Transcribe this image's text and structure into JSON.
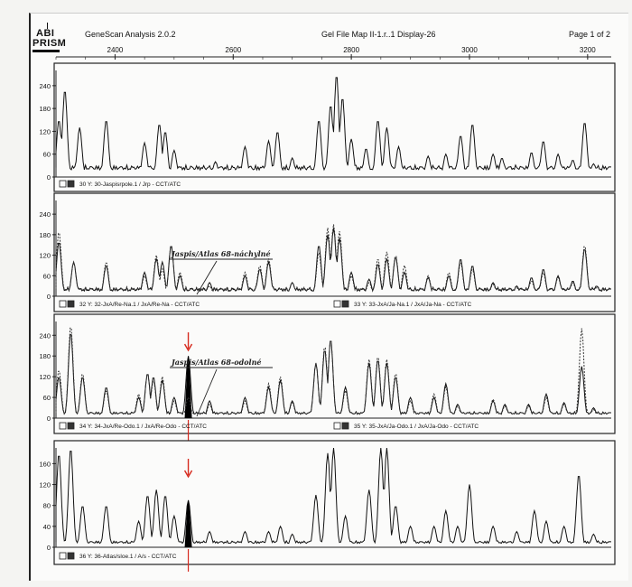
{
  "header": {
    "logo_top": "ABI",
    "logo_bottom": "PRISM",
    "app_title": "GeneScan Analysis 2.0.2",
    "file_title": "Gel File Map II-1.r..1 Display-26",
    "page_label": "Page 1 of 2"
  },
  "colors": {
    "trace": "#111111",
    "dashed": "#333333",
    "marker": "#d62a1e",
    "frame": "#222222"
  },
  "chart_data": [
    {
      "type": "line",
      "xlim": [
        2300,
        3240
      ],
      "x_ticks": [
        "2400",
        "2600",
        "2800",
        "3000",
        "3200"
      ],
      "ylim": [
        0,
        280
      ],
      "y_ticks": [
        "0",
        "60",
        "120",
        "180",
        "240"
      ],
      "lanes": [
        {
          "text": "30 Y: 30-Jaspisrpole.1 / Jrp - CCT/ATC",
          "side": "left"
        }
      ],
      "series": [
        {
          "style": "solid",
          "peaks": [
            [
              2305,
              150
            ],
            [
              2315,
              230
            ],
            [
              2340,
              130
            ],
            [
              2385,
              150
            ],
            [
              2450,
              90
            ],
            [
              2475,
              140
            ],
            [
              2485,
              120
            ],
            [
              2500,
              70
            ],
            [
              2570,
              40
            ],
            [
              2620,
              80
            ],
            [
              2660,
              95
            ],
            [
              2675,
              120
            ],
            [
              2700,
              50
            ],
            [
              2745,
              150
            ],
            [
              2765,
              190
            ],
            [
              2775,
              270
            ],
            [
              2785,
              210
            ],
            [
              2800,
              100
            ],
            [
              2825,
              75
            ],
            [
              2845,
              150
            ],
            [
              2860,
              130
            ],
            [
              2880,
              80
            ],
            [
              2930,
              55
            ],
            [
              2960,
              60
            ],
            [
              2985,
              110
            ],
            [
              3005,
              140
            ],
            [
              3040,
              60
            ],
            [
              3055,
              50
            ],
            [
              3080,
              25
            ],
            [
              3105,
              65
            ],
            [
              3125,
              95
            ],
            [
              3150,
              60
            ],
            [
              3175,
              45
            ],
            [
              3195,
              145
            ],
            [
              3210,
              35
            ]
          ],
          "baseline": 25
        }
      ]
    },
    {
      "type": "line",
      "xlim": [
        2300,
        3240
      ],
      "ylim": [
        0,
        280
      ],
      "y_ticks": [
        "0",
        "60",
        "120",
        "180",
        "240"
      ],
      "lanes": [
        {
          "text": "32 Y: 32-JxA/Re-Na.1 / JxA/Re-Na - CCT/ATC",
          "side": "left"
        },
        {
          "text": "33 Y: 33-JxA/Ja-Na.1 / JxA/Ja-Na - CCT/ATC",
          "side": "right"
        }
      ],
      "annotation": "Jaspis/Atlas 68-náchylné",
      "series": [
        {
          "style": "solid",
          "peaks": [
            [
              2305,
              160
            ],
            [
              2330,
              100
            ],
            [
              2385,
              90
            ],
            [
              2450,
              70
            ],
            [
              2470,
              110
            ],
            [
              2480,
              100
            ],
            [
              2495,
              150
            ],
            [
              2510,
              60
            ],
            [
              2560,
              40
            ],
            [
              2620,
              60
            ],
            [
              2645,
              80
            ],
            [
              2660,
              100
            ],
            [
              2700,
              40
            ],
            [
              2745,
              150
            ],
            [
              2760,
              180
            ],
            [
              2770,
              200
            ],
            [
              2780,
              170
            ],
            [
              2800,
              70
            ],
            [
              2830,
              50
            ],
            [
              2845,
              95
            ],
            [
              2860,
              110
            ],
            [
              2875,
              115
            ],
            [
              2890,
              70
            ],
            [
              2930,
              55
            ],
            [
              2965,
              60
            ],
            [
              2985,
              110
            ],
            [
              3005,
              90
            ],
            [
              3040,
              40
            ],
            [
              3080,
              30
            ],
            [
              3105,
              55
            ],
            [
              3125,
              80
            ],
            [
              3150,
              60
            ],
            [
              3175,
              45
            ],
            [
              3195,
              140
            ],
            [
              3215,
              30
            ]
          ],
          "baseline": 20
        },
        {
          "style": "dashed",
          "peaks": [
            [
              2305,
              190
            ],
            [
              2330,
              100
            ],
            [
              2385,
              100
            ],
            [
              2450,
              60
            ],
            [
              2470,
              120
            ],
            [
              2480,
              80
            ],
            [
              2495,
              150
            ],
            [
              2510,
              70
            ],
            [
              2560,
              30
            ],
            [
              2620,
              70
            ],
            [
              2645,
              90
            ],
            [
              2660,
              110
            ],
            [
              2700,
              40
            ],
            [
              2745,
              130
            ],
            [
              2760,
              200
            ],
            [
              2770,
              210
            ],
            [
              2780,
              190
            ],
            [
              2800,
              60
            ],
            [
              2830,
              40
            ],
            [
              2845,
              110
            ],
            [
              2860,
              130
            ],
            [
              2875,
              120
            ],
            [
              2890,
              90
            ],
            [
              2930,
              60
            ],
            [
              2965,
              70
            ],
            [
              2985,
              100
            ],
            [
              3005,
              80
            ],
            [
              3040,
              35
            ],
            [
              3080,
              25
            ],
            [
              3105,
              45
            ],
            [
              3125,
              70
            ],
            [
              3150,
              55
            ],
            [
              3175,
              40
            ],
            [
              3195,
              150
            ],
            [
              3215,
              25
            ]
          ],
          "baseline": 22
        }
      ]
    },
    {
      "type": "line",
      "xlim": [
        2300,
        3240
      ],
      "ylim": [
        0,
        280
      ],
      "y_ticks": [
        "0",
        "60",
        "120",
        "180",
        "240"
      ],
      "lanes": [
        {
          "text": "34 Y: 34-JxA/Re-Odo.1 / JxA/Re-Odo - CCT/ATC",
          "side": "left"
        },
        {
          "text": "35 Y: 35-JxA/Ja-Odo.1 / JxA/Ja-Odo - CCT/ATC",
          "side": "right"
        }
      ],
      "annotation": "Jaspis/Atlas 68-odolné",
      "marker_x": 2524,
      "series": [
        {
          "style": "solid",
          "peaks": [
            [
              2305,
              120
            ],
            [
              2325,
              250
            ],
            [
              2345,
              120
            ],
            [
              2385,
              90
            ],
            [
              2440,
              60
            ],
            [
              2455,
              130
            ],
            [
              2465,
              120
            ],
            [
              2480,
              110
            ],
            [
              2500,
              60
            ],
            [
              2524,
              180
            ],
            [
              2560,
              50
            ],
            [
              2620,
              60
            ],
            [
              2660,
              90
            ],
            [
              2680,
              110
            ],
            [
              2700,
              50
            ],
            [
              2740,
              160
            ],
            [
              2755,
              200
            ],
            [
              2765,
              230
            ],
            [
              2790,
              90
            ],
            [
              2830,
              160
            ],
            [
              2845,
              170
            ],
            [
              2860,
              160
            ],
            [
              2875,
              120
            ],
            [
              2900,
              60
            ],
            [
              2940,
              60
            ],
            [
              2960,
              100
            ],
            [
              2980,
              40
            ],
            [
              3040,
              50
            ],
            [
              3060,
              40
            ],
            [
              3100,
              40
            ],
            [
              3130,
              70
            ],
            [
              3160,
              45
            ],
            [
              3190,
              150
            ],
            [
              3210,
              30
            ]
          ],
          "baseline": 15,
          "filled_peak_x": 2524
        },
        {
          "style": "dashed",
          "peaks": [
            [
              2305,
              140
            ],
            [
              2325,
              270
            ],
            [
              2345,
              130
            ],
            [
              2385,
              80
            ],
            [
              2440,
              70
            ],
            [
              2455,
              130
            ],
            [
              2465,
              110
            ],
            [
              2480,
              120
            ],
            [
              2500,
              50
            ],
            [
              2524,
              60
            ],
            [
              2560,
              40
            ],
            [
              2620,
              50
            ],
            [
              2660,
              100
            ],
            [
              2680,
              120
            ],
            [
              2700,
              45
            ],
            [
              2740,
              160
            ],
            [
              2755,
              210
            ],
            [
              2765,
              230
            ],
            [
              2790,
              80
            ],
            [
              2830,
              170
            ],
            [
              2845,
              180
            ],
            [
              2860,
              170
            ],
            [
              2875,
              130
            ],
            [
              2900,
              50
            ],
            [
              2940,
              70
            ],
            [
              2960,
              90
            ],
            [
              2980,
              35
            ],
            [
              3040,
              55
            ],
            [
              3060,
              35
            ],
            [
              3100,
              35
            ],
            [
              3130,
              60
            ],
            [
              3160,
              40
            ],
            [
              3190,
              260
            ],
            [
              3210,
              25
            ]
          ],
          "baseline": 15
        }
      ]
    },
    {
      "type": "line",
      "xlim": [
        2300,
        3240
      ],
      "ylim": [
        0,
        190
      ],
      "y_ticks": [
        "0",
        "40",
        "80",
        "120",
        "160"
      ],
      "lanes": [
        {
          "text": "36 Y: 36-Atlas/sloe.1 / A/s - CCT/ATC",
          "side": "left"
        }
      ],
      "marker_x": 2524,
      "series": [
        {
          "style": "solid",
          "peaks": [
            [
              2305,
              180
            ],
            [
              2325,
              190
            ],
            [
              2345,
              80
            ],
            [
              2385,
              80
            ],
            [
              2440,
              50
            ],
            [
              2455,
              100
            ],
            [
              2470,
              110
            ],
            [
              2485,
              100
            ],
            [
              2500,
              60
            ],
            [
              2524,
              90
            ],
            [
              2560,
              30
            ],
            [
              2620,
              30
            ],
            [
              2660,
              30
            ],
            [
              2680,
              40
            ],
            [
              2700,
              25
            ],
            [
              2740,
              100
            ],
            [
              2760,
              180
            ],
            [
              2770,
              190
            ],
            [
              2790,
              60
            ],
            [
              2830,
              110
            ],
            [
              2850,
              190
            ],
            [
              2860,
              190
            ],
            [
              2875,
              80
            ],
            [
              2900,
              40
            ],
            [
              2940,
              40
            ],
            [
              2960,
              70
            ],
            [
              2980,
              40
            ],
            [
              3000,
              120
            ],
            [
              3040,
              40
            ],
            [
              3080,
              30
            ],
            [
              3110,
              70
            ],
            [
              3130,
              50
            ],
            [
              3160,
              40
            ],
            [
              3185,
              140
            ],
            [
              3210,
              25
            ]
          ],
          "baseline": 10,
          "filled_peak_x": 2524
        }
      ]
    }
  ]
}
